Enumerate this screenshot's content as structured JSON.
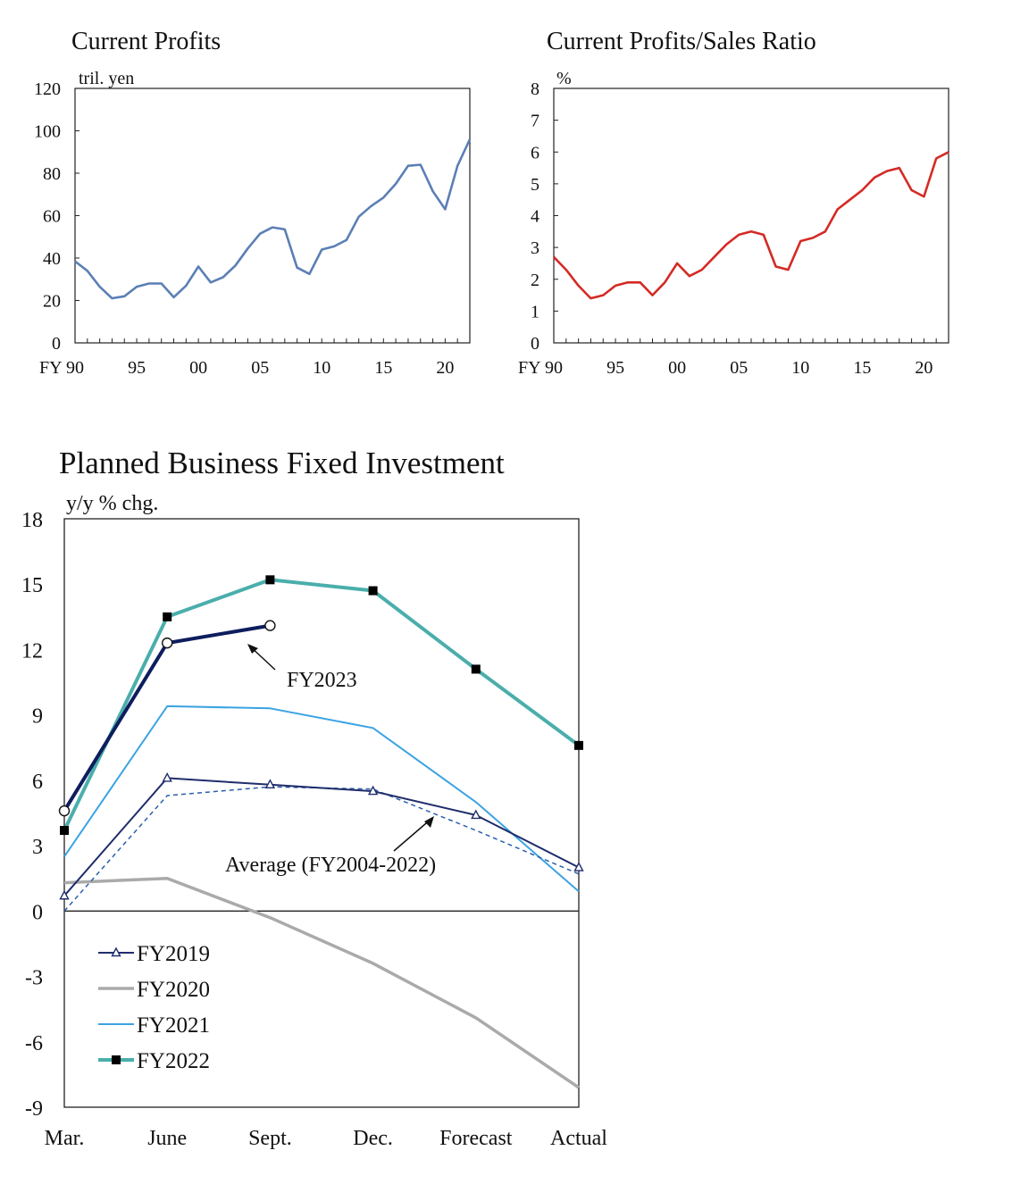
{
  "chart_data": [
    {
      "type": "line",
      "title": "Current Profits",
      "unit_label": "tril. yen",
      "x_prefix": "FY",
      "x_tick_labels": [
        "90",
        "95",
        "00",
        "05",
        "10",
        "15",
        "20"
      ],
      "xlim": [
        1990,
        2022
      ],
      "ylim": [
        0,
        120
      ],
      "y_ticks": [
        0,
        20,
        40,
        60,
        80,
        100,
        120
      ],
      "grid": false,
      "series": [
        {
          "color": "#5b7fb5",
          "x": [
            1990,
            1991,
            1992,
            1993,
            1994,
            1995,
            1996,
            1997,
            1998,
            1999,
            2000,
            2001,
            2002,
            2003,
            2004,
            2005,
            2006,
            2007,
            2008,
            2009,
            2010,
            2011,
            2012,
            2013,
            2014,
            2015,
            2016,
            2017,
            2018,
            2019,
            2020,
            2021,
            2022
          ],
          "values": [
            38.5,
            34,
            26.5,
            21,
            22,
            26.5,
            28,
            28,
            21.5,
            27,
            36,
            28.5,
            31,
            36.5,
            44.5,
            51.5,
            54.5,
            53.5,
            35.5,
            32.5,
            44,
            45.5,
            48.5,
            59.5,
            64.5,
            68.5,
            75,
            83.5,
            84,
            71.5,
            63,
            83.5,
            96
          ]
        }
      ]
    },
    {
      "type": "line",
      "title": "Current Profits/Sales Ratio",
      "unit_label": "%",
      "x_prefix": "FY",
      "x_tick_labels": [
        "90",
        "95",
        "00",
        "05",
        "10",
        "15",
        "20"
      ],
      "xlim": [
        1990,
        2022
      ],
      "ylim": [
        0,
        8
      ],
      "y_ticks": [
        0,
        1,
        2,
        3,
        4,
        5,
        6,
        7,
        8
      ],
      "grid": false,
      "series": [
        {
          "color": "#d42a24",
          "x": [
            1990,
            1991,
            1992,
            1993,
            1994,
            1995,
            1996,
            1997,
            1998,
            1999,
            2000,
            2001,
            2002,
            2003,
            2004,
            2005,
            2006,
            2007,
            2008,
            2009,
            2010,
            2011,
            2012,
            2013,
            2014,
            2015,
            2016,
            2017,
            2018,
            2019,
            2020,
            2021,
            2022
          ],
          "values": [
            2.7,
            2.3,
            1.8,
            1.4,
            1.5,
            1.8,
            1.9,
            1.9,
            1.5,
            1.9,
            2.5,
            2.1,
            2.3,
            2.7,
            3.1,
            3.4,
            3.5,
            3.4,
            2.4,
            2.3,
            3.2,
            3.3,
            3.5,
            4.2,
            4.5,
            4.8,
            5.2,
            5.4,
            5.5,
            4.8,
            4.6,
            5.8,
            6.0
          ]
        }
      ]
    },
    {
      "type": "line",
      "title": "Planned Business Fixed Investment",
      "unit_label": "y/y % chg.",
      "categories": [
        "Mar.",
        "June",
        "Sept.",
        "Dec.",
        "Forecast",
        "Actual"
      ],
      "ylim": [
        -9,
        18
      ],
      "y_ticks": [
        -9,
        -6,
        -3,
        0,
        3,
        6,
        9,
        12,
        15,
        18
      ],
      "grid": false,
      "legend_position": "bottom-left",
      "annotations": [
        "FY2023",
        "Average (FY2004-2022)"
      ],
      "series": [
        {
          "name": "FY2019",
          "legend": true,
          "color": "#1f2d6b",
          "width": 2,
          "marker": "triangle-open",
          "values": [
            0.7,
            6.1,
            5.8,
            5.5,
            4.4,
            2.0
          ]
        },
        {
          "name": "FY2020",
          "legend": true,
          "color": "#aaaaaa",
          "width": 3.5,
          "marker": "none",
          "values": [
            1.3,
            1.5,
            -0.3,
            -2.4,
            -4.9,
            -8.1
          ]
        },
        {
          "name": "FY2021",
          "legend": true,
          "color": "#3ba3e3",
          "width": 2,
          "marker": "none",
          "values": [
            2.5,
            9.4,
            9.3,
            8.4,
            5.0,
            0.9
          ]
        },
        {
          "name": "FY2022",
          "legend": true,
          "color": "#4aaeac",
          "width": 4,
          "marker": "square-filled",
          "values": [
            3.7,
            13.5,
            15.2,
            14.7,
            11.1,
            7.6
          ]
        },
        {
          "name": "FY2023",
          "legend": false,
          "color": "#0e1d5e",
          "width": 4,
          "marker": "circle-open",
          "values": [
            4.6,
            12.3,
            13.1,
            null,
            null,
            null
          ]
        },
        {
          "name": "Average (FY2004-2022)",
          "legend": false,
          "color": "#2a5faa",
          "width": 1.5,
          "dashed": true,
          "marker": "none",
          "values": [
            0.0,
            5.3,
            5.7,
            5.6,
            3.7,
            1.7
          ]
        }
      ]
    }
  ]
}
